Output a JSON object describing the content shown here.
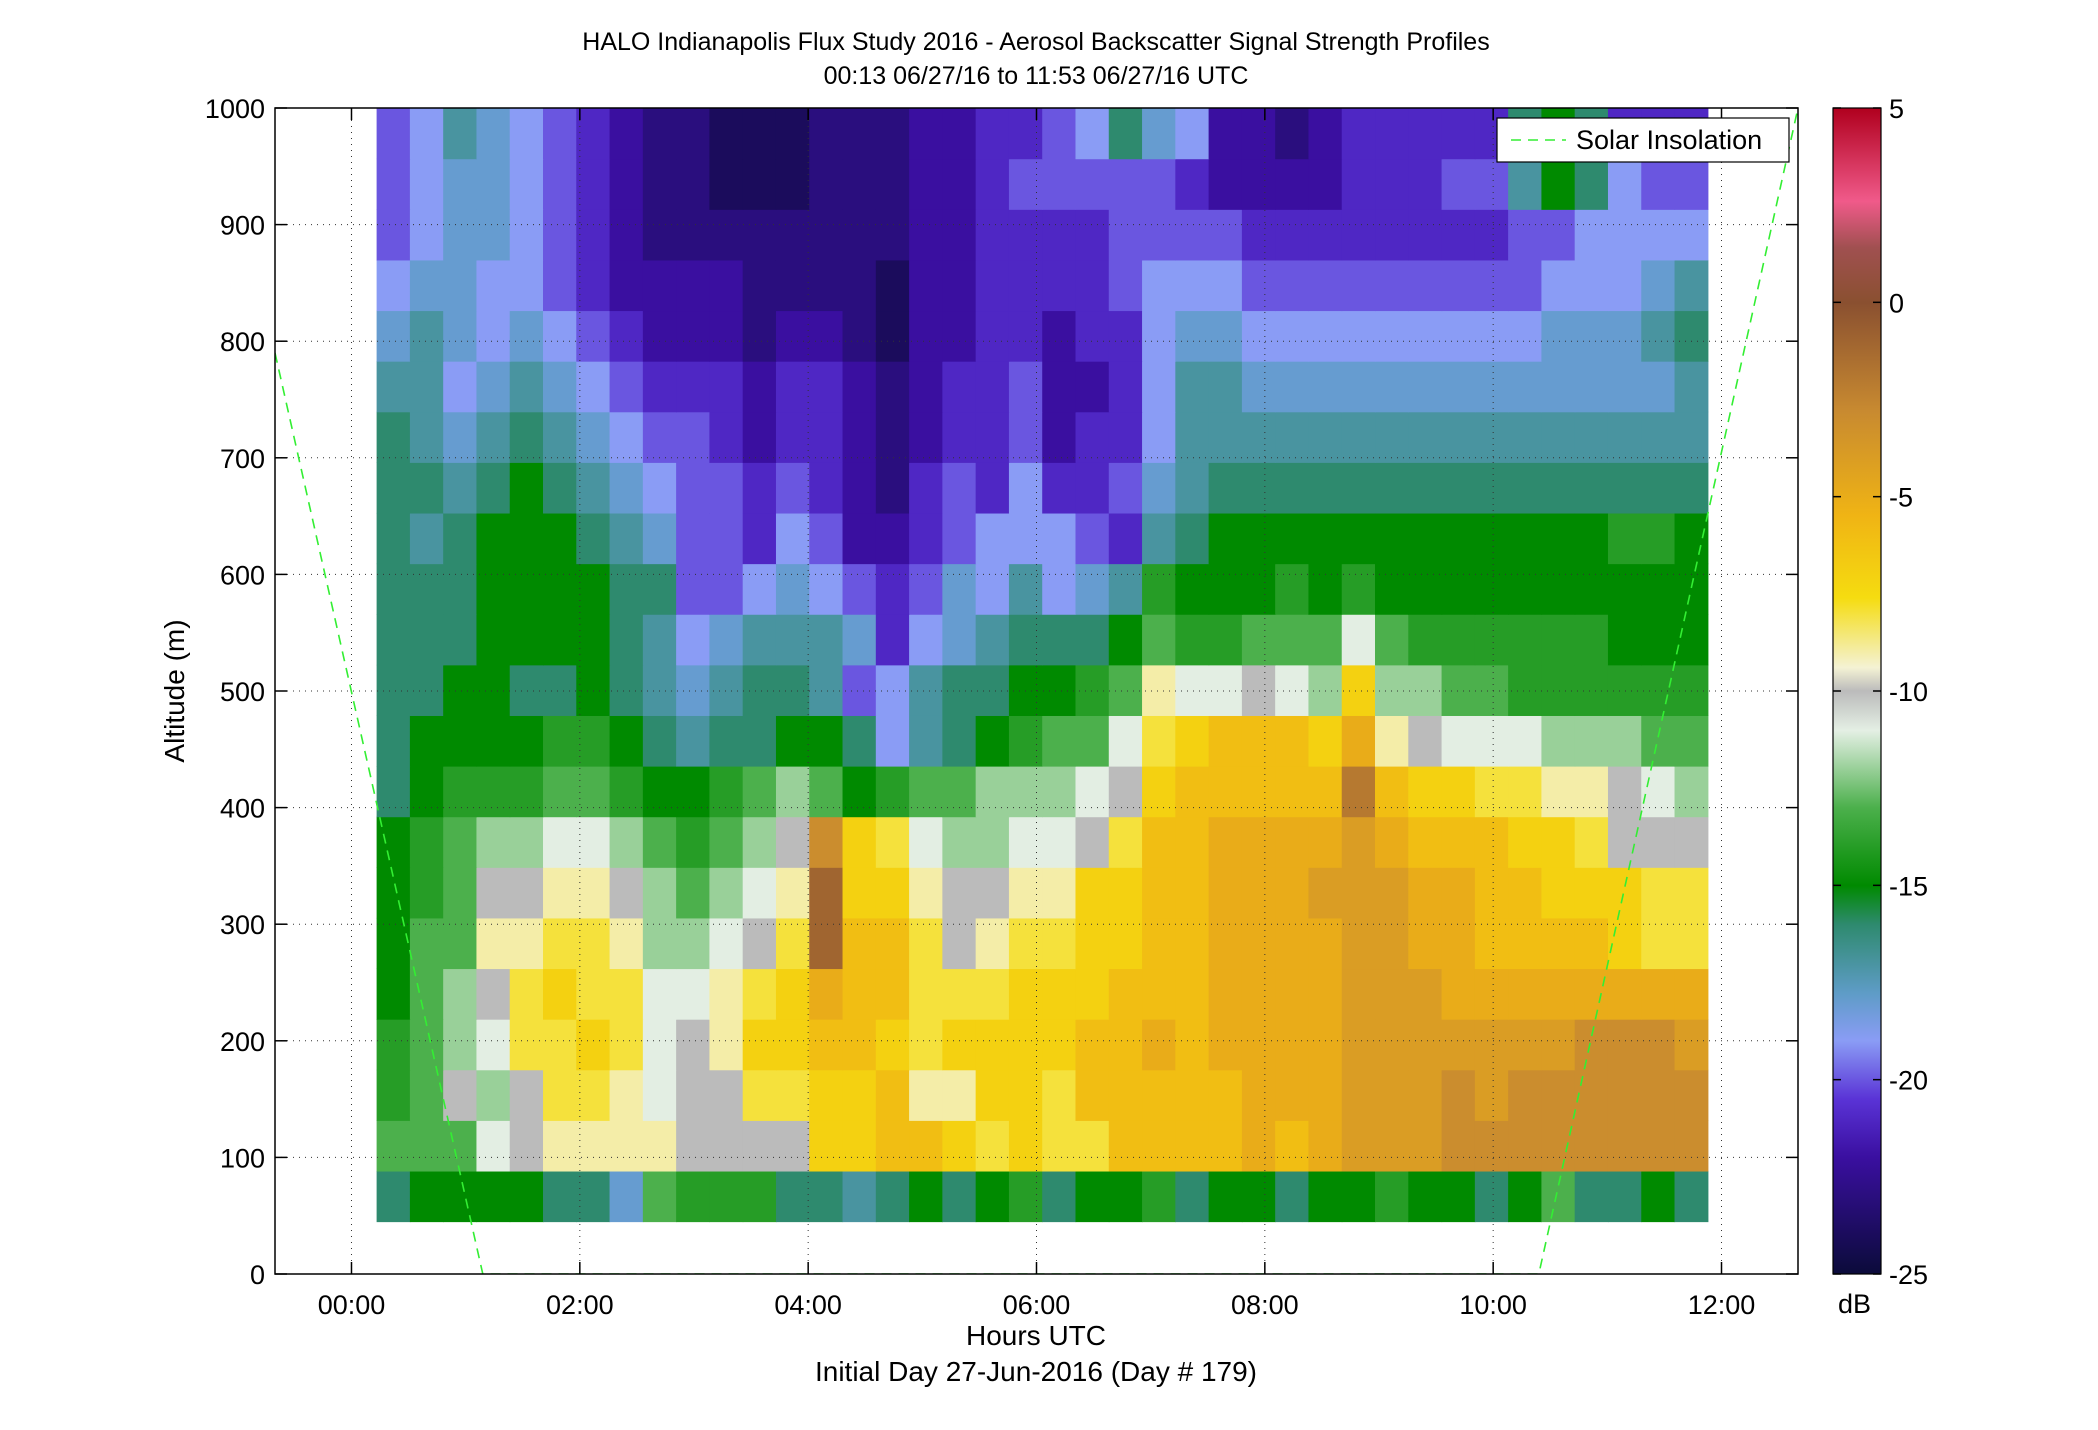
{
  "chart_data": {
    "type": "heatmap",
    "title": "HALO Indianapolis Flux Study 2016 - Aerosol Backscatter Signal Strength Profiles",
    "subtitle": "00:13 06/27/16 to 11:53 06/27/16  UTC",
    "xlabel": "Hours UTC",
    "xlabel2": "Initial Day 27-Jun-2016 (Day # 179)",
    "ylabel": "Altitude (m)",
    "xlim": [
      -0.67,
      12.67
    ],
    "ylim": [
      0,
      1000
    ],
    "x_ticks": [
      0,
      2,
      4,
      6,
      8,
      10,
      12
    ],
    "x_tick_labels": [
      "00:00",
      "02:00",
      "04:00",
      "06:00",
      "08:00",
      "10:00",
      "12:00"
    ],
    "y_ticks": [
      0,
      100,
      200,
      300,
      400,
      500,
      600,
      700,
      800,
      900,
      1000
    ],
    "y_tick_labels": [
      "0",
      "100",
      "200",
      "300",
      "400",
      "500",
      "600",
      "700",
      "800",
      "900",
      "1000"
    ],
    "grid": true,
    "legend": {
      "label": "Solar Insolation",
      "placement": "top-right"
    },
    "colorbar": {
      "label": "dB",
      "range": [
        -25,
        5
      ],
      "ticks": [
        5,
        0,
        -5,
        -10,
        -15,
        -20,
        -25
      ],
      "tick_labels": [
        "5",
        "0",
        "-5",
        "-10",
        "-15",
        "-20",
        "-25"
      ]
    },
    "time_start_hours": 0.22,
    "time_end_hours": 11.88,
    "altitude_start_m": 45,
    "altitude_end_m": 1000,
    "columns": 40,
    "rows": 22,
    "solar_insolation_line": {
      "x": [
        -0.67,
        1.15,
        10.4,
        12.67
      ],
      "y": [
        790,
        0,
        0,
        1000
      ]
    },
    "values_db": [
      [
        -16,
        -15,
        -15,
        -15,
        -15,
        -16,
        -16,
        -18,
        -13,
        -14,
        -14,
        -14,
        -16,
        -16,
        -17,
        -16,
        -15,
        -16,
        -15,
        -14,
        -16,
        -15,
        -15,
        -14,
        -16,
        -15,
        -15,
        -16,
        -15,
        -15,
        -14,
        -15,
        -15,
        -16,
        -15,
        -13,
        -16,
        -16,
        -15,
        -16
      ],
      [
        -13,
        -13,
        -13,
        -11,
        -10,
        -9,
        -9,
        -9,
        -9,
        -10,
        -10,
        -10,
        -10,
        -7,
        -7,
        -6,
        -6,
        -7,
        -8,
        -7,
        -8,
        -8,
        -6,
        -6,
        -6,
        -6,
        -5,
        -6,
        -5,
        -4,
        -4,
        -4,
        -3,
        -3,
        -3,
        -3,
        -3,
        -3,
        -3,
        -3
      ],
      [
        -14,
        -13,
        -10,
        -12,
        -10,
        -8,
        -8,
        -9,
        -11,
        -10,
        -10,
        -8,
        -8,
        -7,
        -7,
        -6,
        -9,
        -9,
        -7,
        -7,
        -8,
        -6,
        -6,
        -6,
        -6,
        -6,
        -5,
        -5,
        -5,
        -4,
        -4,
        -4,
        -3,
        -4,
        -3,
        -3,
        -3,
        -3,
        -3,
        -3
      ],
      [
        -14,
        -13,
        -12,
        -11,
        -8,
        -8,
        -7,
        -8,
        -11,
        -10,
        -9,
        -7,
        -7,
        -6,
        -6,
        -7,
        -8,
        -7,
        -7,
        -7,
        -7,
        -6,
        -6,
        -5,
        -6,
        -5,
        -5,
        -5,
        -5,
        -4,
        -4,
        -4,
        -4,
        -4,
        -4,
        -4,
        -3,
        -3,
        -3,
        -4
      ],
      [
        -15,
        -13,
        -12,
        -10,
        -8,
        -7,
        -8,
        -8,
        -11,
        -11,
        -9,
        -8,
        -7,
        -5,
        -6,
        -6,
        -8,
        -8,
        -8,
        -7,
        -7,
        -7,
        -6,
        -6,
        -6,
        -5,
        -5,
        -5,
        -5,
        -4,
        -4,
        -4,
        -5,
        -5,
        -5,
        -5,
        -5,
        -5,
        -5,
        -5
      ],
      [
        -15,
        -13,
        -13,
        -9,
        -9,
        -8,
        -8,
        -9,
        -12,
        -12,
        -11,
        -10,
        -8,
        -1,
        -6,
        -6,
        -8,
        -10,
        -9,
        -8,
        -8,
        -7,
        -7,
        -6,
        -6,
        -5,
        -5,
        -5,
        -5,
        -4,
        -4,
        -5,
        -5,
        -6,
        -6,
        -6,
        -6,
        -7,
        -8,
        -8
      ],
      [
        -15,
        -14,
        -13,
        -10,
        -10,
        -9,
        -9,
        -10,
        -12,
        -13,
        -12,
        -11,
        -9,
        -1,
        -7,
        -7,
        -9,
        -10,
        -10,
        -9,
        -9,
        -7,
        -7,
        -6,
        -6,
        -5,
        -5,
        -5,
        -4,
        -4,
        -4,
        -5,
        -5,
        -6,
        -6,
        -7,
        -7,
        -7,
        -8,
        -8
      ],
      [
        -15,
        -14,
        -13,
        -12,
        -12,
        -11,
        -11,
        -12,
        -13,
        -14,
        -13,
        -12,
        -10,
        -3,
        -7,
        -8,
        -11,
        -12,
        -12,
        -11,
        -11,
        -10,
        -8,
        -6,
        -6,
        -5,
        -5,
        -5,
        -5,
        -4,
        -5,
        -6,
        -6,
        -6,
        -7,
        -7,
        -8,
        -10,
        -10,
        -10
      ],
      [
        -16,
        -15,
        -14,
        -14,
        -14,
        -13,
        -13,
        -14,
        -15,
        -15,
        -14,
        -13,
        -12,
        -13,
        -15,
        -14,
        -13,
        -13,
        -12,
        -12,
        -12,
        -11,
        -10,
        -7,
        -6,
        -6,
        -6,
        -6,
        -6,
        -2,
        -6,
        -7,
        -7,
        -8,
        -8,
        -9,
        -9,
        -10,
        -11,
        -12
      ],
      [
        -16,
        -15,
        -15,
        -15,
        -15,
        -14,
        -14,
        -15,
        -16,
        -17,
        -16,
        -16,
        -15,
        -15,
        -16,
        -19,
        -17,
        -16,
        -15,
        -14,
        -13,
        -13,
        -11,
        -8,
        -7,
        -6,
        -6,
        -6,
        -7,
        -5,
        -9,
        -10,
        -11,
        -11,
        -11,
        -12,
        -12,
        -12,
        -13,
        -13
      ],
      [
        -16,
        -16,
        -15,
        -15,
        -16,
        -16,
        -15,
        -16,
        -17,
        -18,
        -17,
        -16,
        -16,
        -17,
        -20,
        -19,
        -17,
        -16,
        -16,
        -15,
        -15,
        -14,
        -13,
        -9,
        -11,
        -11,
        -10,
        -11,
        -12,
        -7,
        -12,
        -12,
        -13,
        -13,
        -14,
        -14,
        -14,
        -14,
        -14,
        -14
      ],
      [
        -16,
        -16,
        -16,
        -15,
        -15,
        -15,
        -15,
        -16,
        -17,
        -19,
        -18,
        -17,
        -17,
        -17,
        -18,
        -21,
        -19,
        -18,
        -17,
        -16,
        -16,
        -16,
        -15,
        -13,
        -14,
        -14,
        -13,
        -13,
        -13,
        -11,
        -13,
        -14,
        -14,
        -14,
        -14,
        -14,
        -14,
        -15,
        -15,
        -15
      ],
      [
        -16,
        -16,
        -16,
        -15,
        -15,
        -15,
        -15,
        -16,
        -16,
        -20,
        -20,
        -19,
        -18,
        -19,
        -20,
        -21,
        -20,
        -18,
        -19,
        -17,
        -19,
        -18,
        -17,
        -14,
        -15,
        -15,
        -15,
        -14,
        -15,
        -14,
        -15,
        -15,
        -15,
        -15,
        -15,
        -15,
        -15,
        -15,
        -15,
        -15
      ],
      [
        -16,
        -17,
        -16,
        -15,
        -15,
        -15,
        -16,
        -17,
        -18,
        -20,
        -20,
        -21,
        -19,
        -20,
        -22,
        -22,
        -21,
        -20,
        -19,
        -19,
        -19,
        -20,
        -21,
        -17,
        -16,
        -15,
        -15,
        -15,
        -15,
        -15,
        -15,
        -15,
        -15,
        -15,
        -15,
        -15,
        -15,
        -14,
        -14,
        -15
      ],
      [
        -16,
        -16,
        -17,
        -16,
        -15,
        -16,
        -17,
        -18,
        -19,
        -20,
        -20,
        -21,
        -20,
        -21,
        -22,
        -23,
        -21,
        -20,
        -21,
        -19,
        -21,
        -21,
        -20,
        -18,
        -17,
        -16,
        -16,
        -16,
        -16,
        -16,
        -16,
        -16,
        -16,
        -16,
        -16,
        -16,
        -16,
        -16,
        -16,
        -16
      ],
      [
        -16,
        -17,
        -18,
        -17,
        -16,
        -17,
        -18,
        -19,
        -20,
        -20,
        -21,
        -22,
        -21,
        -21,
        -22,
        -23,
        -22,
        -21,
        -21,
        -20,
        -22,
        -21,
        -21,
        -19,
        -17,
        -17,
        -17,
        -17,
        -17,
        -17,
        -17,
        -17,
        -17,
        -17,
        -17,
        -17,
        -17,
        -17,
        -17,
        -17
      ],
      [
        -17,
        -17,
        -19,
        -18,
        -17,
        -18,
        -19,
        -20,
        -21,
        -21,
        -21,
        -22,
        -21,
        -21,
        -22,
        -23,
        -22,
        -21,
        -21,
        -20,
        -22,
        -22,
        -21,
        -19,
        -17,
        -17,
        -18,
        -18,
        -18,
        -18,
        -18,
        -18,
        -18,
        -18,
        -18,
        -18,
        -18,
        -18,
        -18,
        -17
      ],
      [
        -18,
        -17,
        -18,
        -19,
        -18,
        -19,
        -20,
        -21,
        -22,
        -22,
        -22,
        -23,
        -22,
        -22,
        -23,
        -24,
        -22,
        -22,
        -21,
        -21,
        -22,
        -21,
        -21,
        -19,
        -18,
        -18,
        -19,
        -19,
        -19,
        -19,
        -19,
        -19,
        -19,
        -19,
        -19,
        -18,
        -18,
        -18,
        -17,
        -16
      ],
      [
        -19,
        -18,
        -18,
        -19,
        -19,
        -20,
        -21,
        -22,
        -22,
        -22,
        -22,
        -23,
        -23,
        -23,
        -23,
        -24,
        -22,
        -22,
        -21,
        -21,
        -21,
        -21,
        -20,
        -19,
        -19,
        -19,
        -20,
        -20,
        -20,
        -20,
        -20,
        -20,
        -20,
        -20,
        -20,
        -19,
        -19,
        -19,
        -18,
        -17
      ],
      [
        -20,
        -19,
        -18,
        -18,
        -19,
        -20,
        -21,
        -22,
        -23,
        -23,
        -23,
        -23,
        -23,
        -23,
        -23,
        -23,
        -22,
        -22,
        -21,
        -21,
        -21,
        -21,
        -20,
        -20,
        -20,
        -20,
        -21,
        -21,
        -21,
        -21,
        -21,
        -21,
        -21,
        -21,
        -20,
        -20,
        -19,
        -19,
        -19,
        -19
      ],
      [
        -20,
        -19,
        -18,
        -18,
        -19,
        -20,
        -21,
        -22,
        -23,
        -23,
        -24,
        -24,
        -24,
        -23,
        -23,
        -23,
        -22,
        -22,
        -21,
        -20,
        -20,
        -20,
        -20,
        -20,
        -21,
        -22,
        -22,
        -22,
        -22,
        -21,
        -21,
        -21,
        -20,
        -20,
        -17,
        -15,
        -16,
        -19,
        -20,
        -20
      ],
      [
        -20,
        -19,
        -17,
        -18,
        -19,
        -20,
        -21,
        -22,
        -23,
        -23,
        -24,
        -24,
        -24,
        -23,
        -23,
        -23,
        -22,
        -22,
        -21,
        -21,
        -20,
        -19,
        -16,
        -18,
        -19,
        -22,
        -22,
        -23,
        -22,
        -21,
        -21,
        -21,
        -21,
        -21,
        -16,
        -15,
        -16,
        -21,
        -21,
        -21
      ]
    ]
  }
}
